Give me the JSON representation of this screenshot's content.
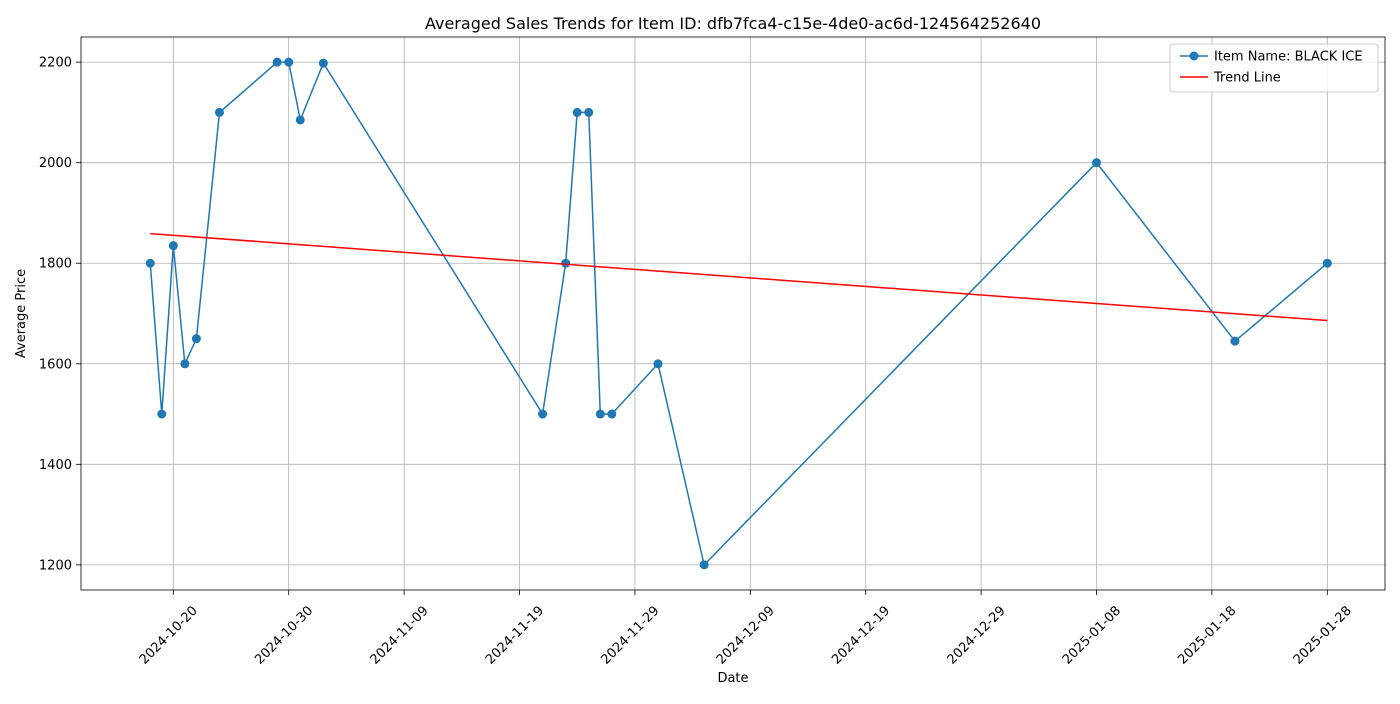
{
  "chart_data": {
    "type": "line",
    "title": "Averaged Sales Trends for Item ID: dfb7fca4-c15e-4de0-ac6d-124564252640",
    "xlabel": "Date",
    "ylabel": "Average Price",
    "x_type": "date",
    "xlim": [
      "2024-10-12",
      "2025-02-02"
    ],
    "ylim": [
      1150,
      2250
    ],
    "x_ticks": [
      "2024-10-20",
      "2024-10-30",
      "2024-11-09",
      "2024-11-19",
      "2024-11-29",
      "2024-12-09",
      "2024-12-19",
      "2024-12-29",
      "2025-01-08",
      "2025-01-18",
      "2025-01-28"
    ],
    "y_ticks": [
      1200,
      1400,
      1600,
      1800,
      2000,
      2200
    ],
    "grid": true,
    "legend_position": "top-right",
    "series": [
      {
        "name": "Item Name: BLACK ICE",
        "color": "#1f77b4",
        "marker": "circle",
        "points": [
          {
            "x": "2024-10-18",
            "y": 1800
          },
          {
            "x": "2024-10-19",
            "y": 1500
          },
          {
            "x": "2024-10-20",
            "y": 1835
          },
          {
            "x": "2024-10-21",
            "y": 1600
          },
          {
            "x": "2024-10-22",
            "y": 1650
          },
          {
            "x": "2024-10-24",
            "y": 2100
          },
          {
            "x": "2024-10-29",
            "y": 2200
          },
          {
            "x": "2024-10-30",
            "y": 2200
          },
          {
            "x": "2024-10-31",
            "y": 2085
          },
          {
            "x": "2024-11-02",
            "y": 2198
          },
          {
            "x": "2024-11-21",
            "y": 1500
          },
          {
            "x": "2024-11-23",
            "y": 1800
          },
          {
            "x": "2024-11-24",
            "y": 2100
          },
          {
            "x": "2024-11-25",
            "y": 2100
          },
          {
            "x": "2024-11-26",
            "y": 1500
          },
          {
            "x": "2024-11-27",
            "y": 1500
          },
          {
            "x": "2024-12-01",
            "y": 1600
          },
          {
            "x": "2024-12-05",
            "y": 1200
          },
          {
            "x": "2025-01-08",
            "y": 2000
          },
          {
            "x": "2025-01-20",
            "y": 1645
          },
          {
            "x": "2025-01-28",
            "y": 1800
          }
        ]
      },
      {
        "name": "Trend Line",
        "color": "#ff0000",
        "marker": "none",
        "points": [
          {
            "x": "2024-10-18",
            "y": 1859
          },
          {
            "x": "2025-01-28",
            "y": 1686
          }
        ]
      }
    ]
  }
}
